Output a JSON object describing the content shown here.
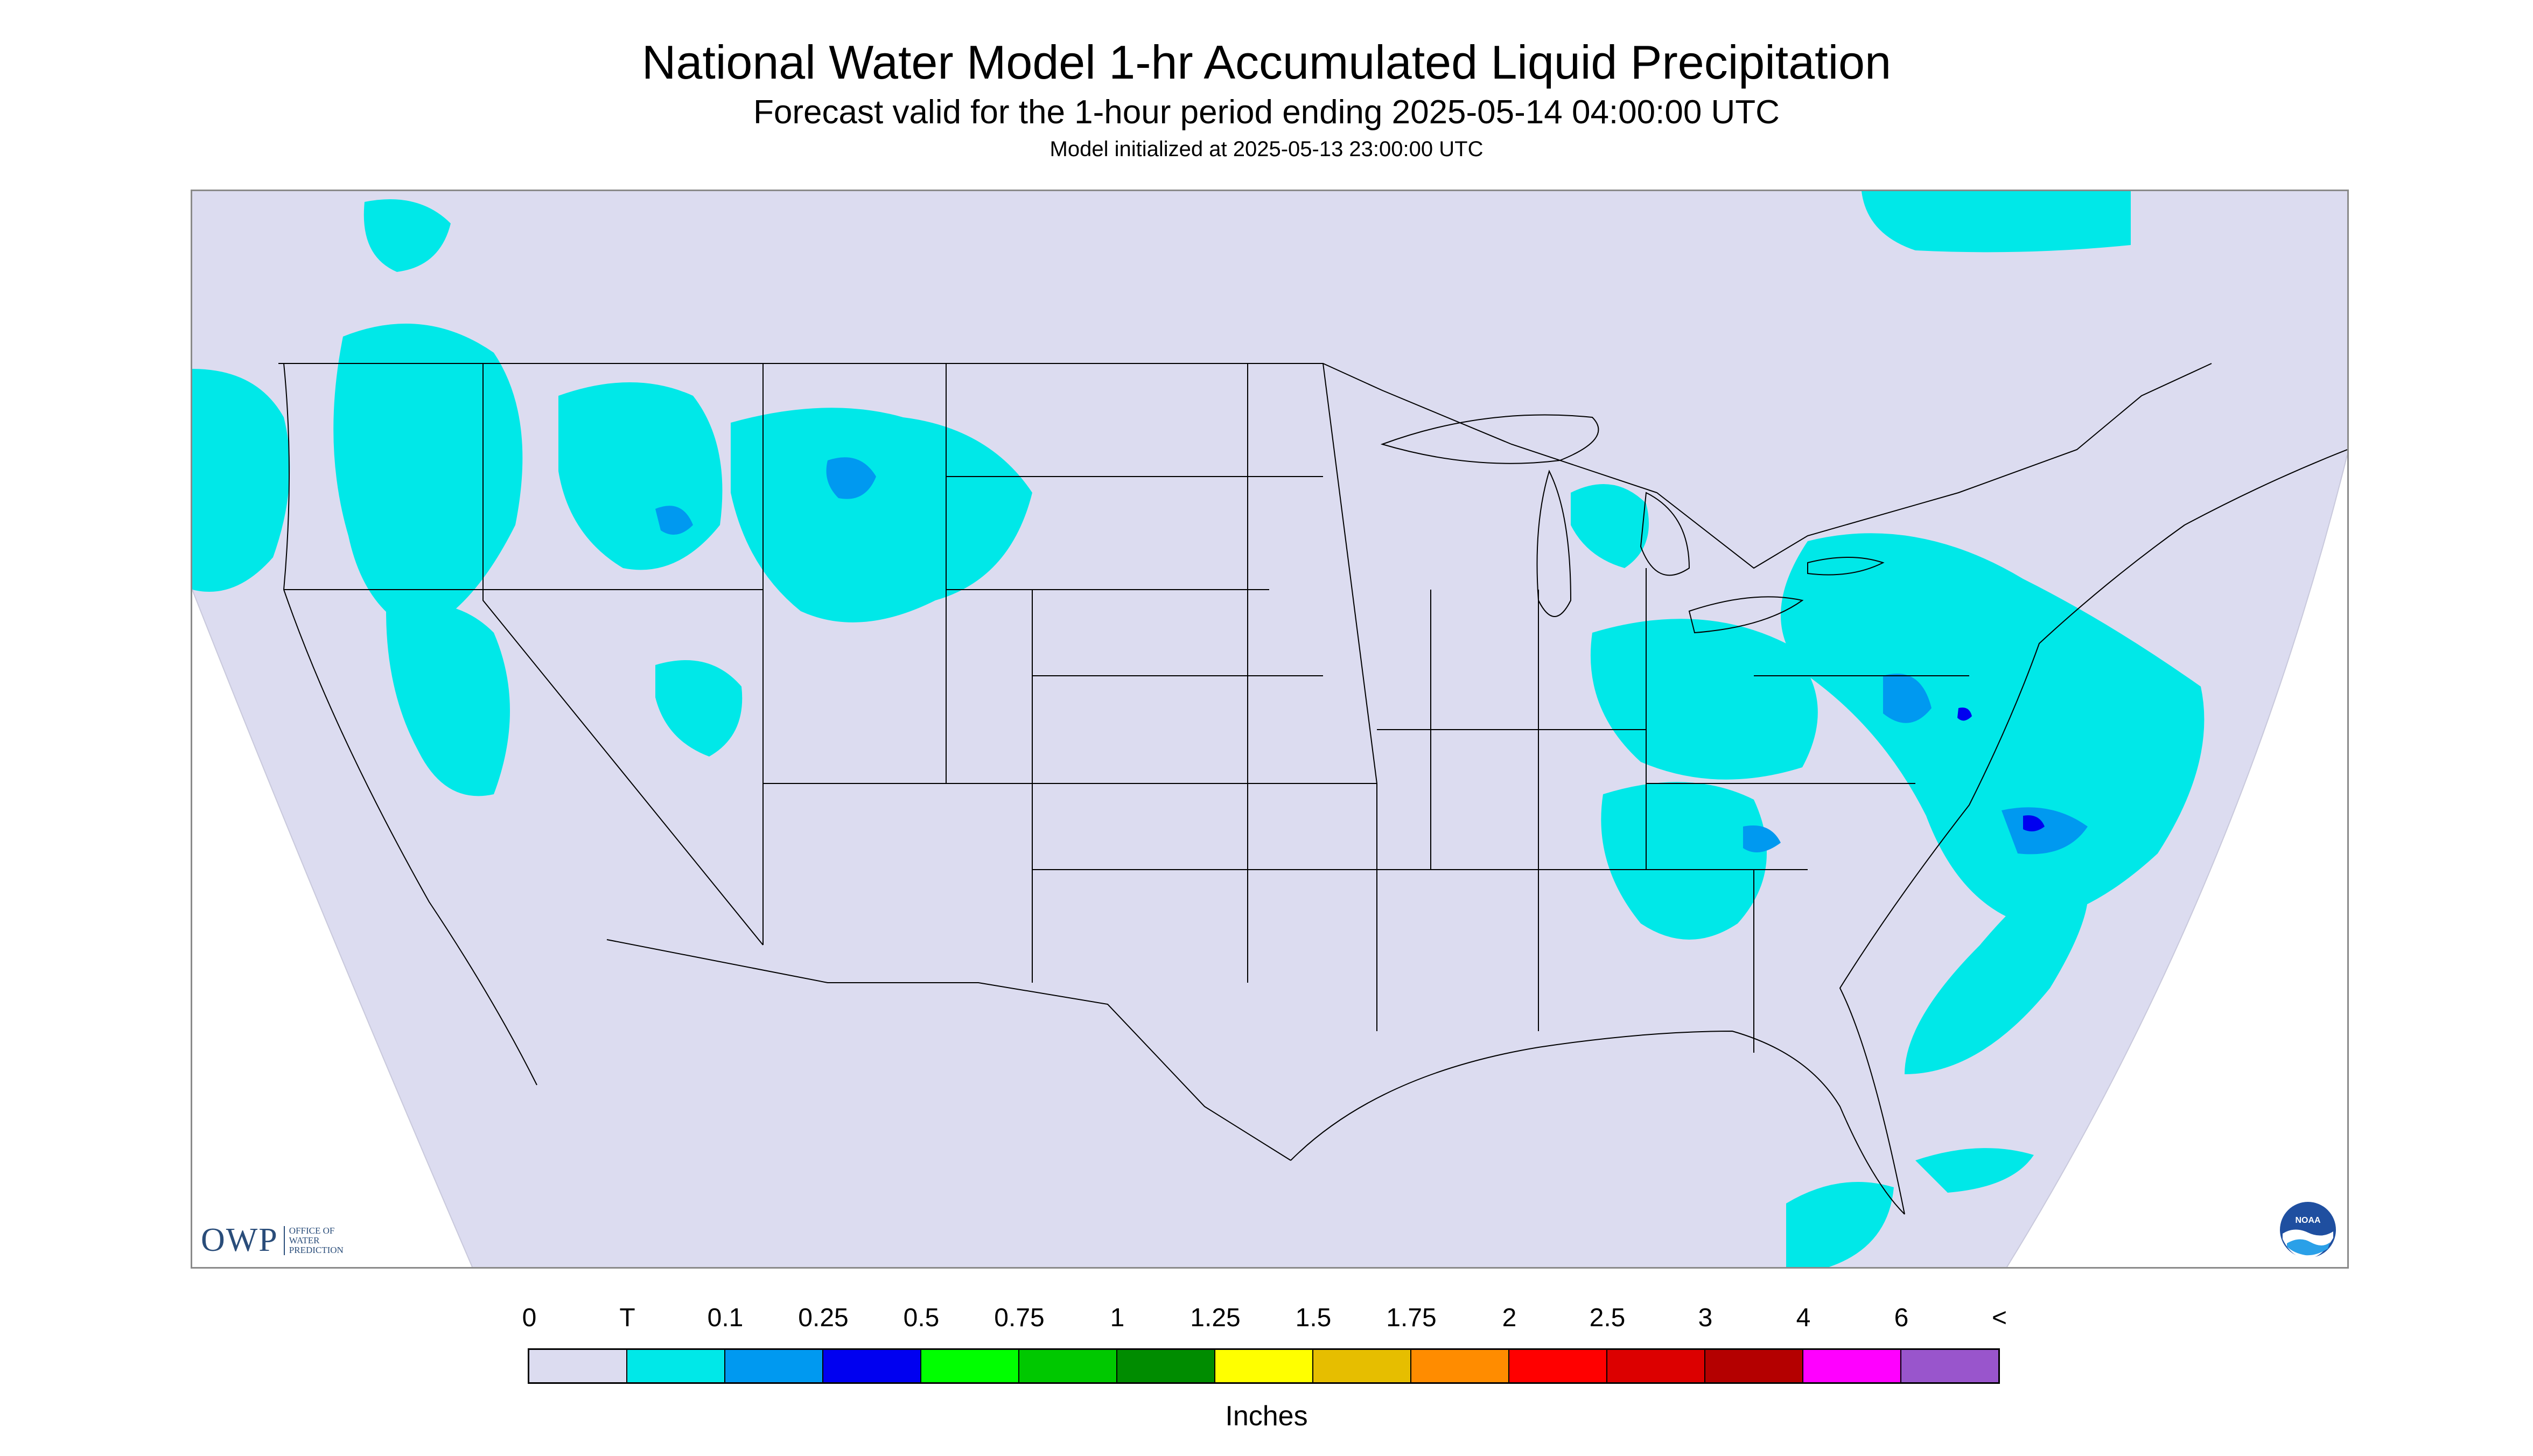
{
  "header": {
    "title": "National Water Model 1-hr Accumulated Liquid Precipitation",
    "subtitle": "Forecast valid for the 1-hour period ending 2025-05-14 04:00:00 UTC",
    "model_init": "Model initialized at 2025-05-13 23:00:00 UTC"
  },
  "logos": {
    "owp_mark": "OWP",
    "owp_text": "OFFICE OF WATER PREDICTION",
    "noaa_text": "NOAA"
  },
  "legend": {
    "ticks": [
      "0",
      "T",
      "0.1",
      "0.25",
      "0.5",
      "0.75",
      "1",
      "1.25",
      "1.5",
      "1.75",
      "2",
      "2.5",
      "3",
      "4",
      "6",
      "<"
    ],
    "colors": [
      "#dcdcf0",
      "#00e8e8",
      "#0099f0",
      "#0000f0",
      "#00ff00",
      "#00c800",
      "#008c00",
      "#ffff00",
      "#e6be00",
      "#ff8c00",
      "#ff0000",
      "#dc0000",
      "#b40000",
      "#ff00ff",
      "#9955cc"
    ],
    "units": "Inches"
  },
  "colors": {
    "no_precip": "#dcdcf0",
    "trace": "#00e8e8",
    "light": "#0099f0",
    "moderate": "#0000f0",
    "boundary": "#000000"
  }
}
